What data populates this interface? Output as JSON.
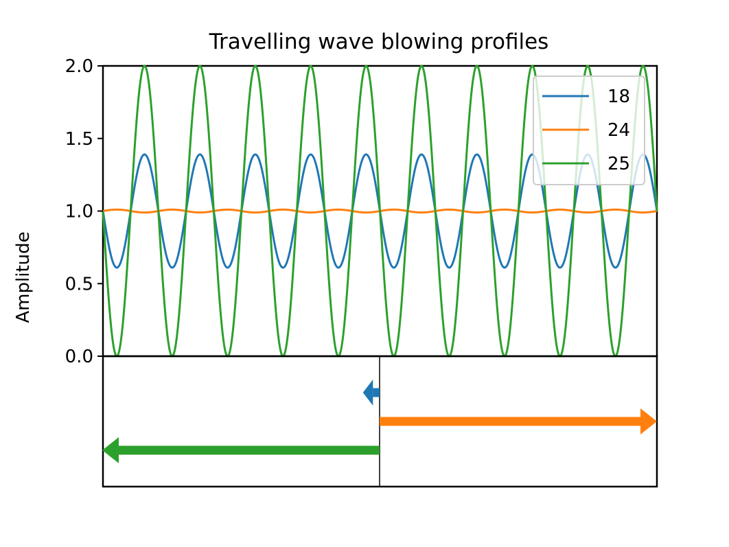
{
  "chart_data": {
    "type": "line",
    "title": "Travelling wave blowing profiles",
    "xlabel": "",
    "ylabel": "Amplitude",
    "xlim": [
      0,
      10
    ],
    "ylim": [
      0,
      2.0
    ],
    "yticks": [
      "0.0",
      "0.5",
      "1.0",
      "1.5",
      "2.0"
    ],
    "grid": false,
    "legend": {
      "placement": "top-right",
      "entries": [
        "18",
        "24",
        "25"
      ]
    },
    "series": [
      {
        "name": "18",
        "color": "#1f77b4",
        "amplitude": 0.39,
        "cycles": 10,
        "phase_sign": -1,
        "direction": "left",
        "arrow_magnitude": 0.06
      },
      {
        "name": "24",
        "color": "#ff7f0e",
        "amplitude": 0.01,
        "cycles": 10,
        "phase_sign": 1,
        "direction": "right",
        "arrow_magnitude": 1.0
      },
      {
        "name": "25",
        "color": "#2ca02c",
        "amplitude": 1.0,
        "cycles": 10,
        "phase_sign": -1,
        "direction": "left",
        "arrow_magnitude": 1.0
      }
    ],
    "baseline": 1.0,
    "direction_panel": {
      "center_line": true
    }
  }
}
